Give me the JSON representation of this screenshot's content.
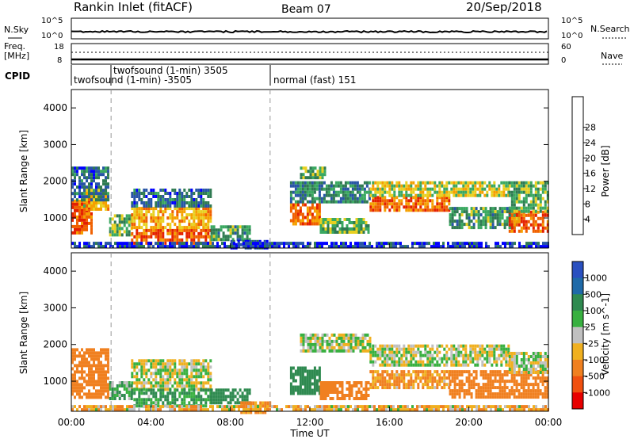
{
  "header": {
    "title": "Rankin Inlet (fitACF)",
    "beam": "Beam 07",
    "date": "20/Sep/2018"
  },
  "noise_panel": {
    "left_label": "N.Sky",
    "right_label": "N.Search",
    "tick_top": "10^5",
    "tick_bottom": "10^0",
    "tick_top_right": "10^5",
    "tick_bottom_right": "10^0"
  },
  "freq_panel": {
    "left_label_1": "Freq.",
    "left_label_2": "[MHz]",
    "right_label": "Nave",
    "tick_top": "18",
    "tick_bottom": "8",
    "tick_top_right": "60",
    "tick_bottom_right": "0"
  },
  "cpid": {
    "label": "CPID",
    "entries": [
      {
        "text": "twofsound (1-min) 3505"
      },
      {
        "text": "twofsound (1-min) -3505"
      },
      {
        "text": "normal (fast) 151"
      }
    ]
  },
  "x_axis": {
    "label": "Time UT",
    "ticks": [
      "00:00",
      "04:00",
      "08:00",
      "12:00",
      "16:00",
      "20:00",
      "00:00"
    ]
  },
  "y_axis": {
    "label": "Slant Range [km]",
    "ticks": [
      "1000",
      "2000",
      "3000",
      "4000"
    ]
  },
  "power_scale": {
    "title": "Power [dB]",
    "labels": [
      "4",
      "8",
      "12",
      "16",
      "20",
      "24",
      "28"
    ],
    "colors": [
      "#0000ff",
      "#2855a6",
      "#2f7a52",
      "#3aa860",
      "#e8d020",
      "#f5a000",
      "#f06000",
      "#e42000",
      "#ff0000"
    ]
  },
  "velocity_scale": {
    "title": "Velocity [m s^-1]",
    "labels": [
      "1000",
      "500",
      "100",
      "25",
      "-25",
      "-100",
      "-500",
      "-1000"
    ],
    "colors": [
      "#2a50c0",
      "#1f6aa8",
      "#2f8a50",
      "#38b040",
      "#c0c0c0",
      "#f0b020",
      "#f08020",
      "#f05010",
      "#e80000"
    ]
  },
  "chart_data": {
    "type": "heatmap",
    "x_range_hours": [
      0,
      24
    ],
    "y_range_km": [
      180,
      4500
    ],
    "mode_change_hours": [
      2,
      10
    ],
    "power_regions": [
      {
        "t0": 0.0,
        "t1": 1.0,
        "r0": 600,
        "r1": 1500,
        "db": 27
      },
      {
        "t0": 0.6,
        "t1": 1.9,
        "r0": 1200,
        "r1": 1800,
        "db": 20
      },
      {
        "t0": 0.0,
        "t1": 1.9,
        "r0": 1500,
        "r1": 2400,
        "db": 8
      },
      {
        "t0": 1.9,
        "t1": 3.0,
        "r0": 500,
        "r1": 1100,
        "db": 14
      },
      {
        "t0": 3.0,
        "t1": 7.0,
        "r0": 300,
        "r1": 700,
        "db": 27
      },
      {
        "t0": 3.0,
        "t1": 7.0,
        "r0": 700,
        "r1": 1300,
        "db": 21
      },
      {
        "t0": 3.0,
        "t1": 7.0,
        "r0": 1300,
        "r1": 1800,
        "db": 8
      },
      {
        "t0": 7.0,
        "t1": 9.0,
        "r0": 400,
        "r1": 800,
        "db": 12
      },
      {
        "t0": 8.0,
        "t1": 10.0,
        "r0": 200,
        "r1": 400,
        "db": 6
      },
      {
        "t0": 11.0,
        "t1": 12.5,
        "r0": 800,
        "r1": 1400,
        "db": 25
      },
      {
        "t0": 11.5,
        "t1": 12.8,
        "r0": 2100,
        "r1": 2400,
        "db": 14
      },
      {
        "t0": 11.0,
        "t1": 15.0,
        "r0": 1400,
        "r1": 2000,
        "db": 10
      },
      {
        "t0": 12.5,
        "t1": 15.0,
        "r0": 600,
        "r1": 1000,
        "db": 15
      },
      {
        "t0": 15.0,
        "t1": 19.0,
        "r0": 1200,
        "r1": 1600,
        "db": 26
      },
      {
        "t0": 15.0,
        "t1": 22.0,
        "r0": 1600,
        "r1": 2000,
        "db": 18
      },
      {
        "t0": 19.0,
        "t1": 22.5,
        "r0": 700,
        "r1": 1300,
        "db": 12
      },
      {
        "t0": 22.0,
        "t1": 24.0,
        "r0": 600,
        "r1": 1200,
        "db": 26
      },
      {
        "t0": 22.0,
        "t1": 24.0,
        "r0": 1200,
        "r1": 2000,
        "db": 14
      },
      {
        "t0": 0.0,
        "t1": 24.0,
        "r0": 180,
        "r1": 350,
        "db": 5
      }
    ],
    "velocity_regions": [
      {
        "t0": 0.0,
        "t1": 1.9,
        "r0": 600,
        "r1": 1900,
        "v": -300
      },
      {
        "t0": 1.9,
        "t1": 3.0,
        "r0": 500,
        "r1": 1000,
        "v": 80
      },
      {
        "t0": 3.0,
        "t1": 7.0,
        "r0": 800,
        "r1": 1600,
        "v": 0
      },
      {
        "t0": 3.0,
        "t1": 7.0,
        "r0": 300,
        "r1": 800,
        "v": 120
      },
      {
        "t0": 7.0,
        "t1": 9.0,
        "r0": 400,
        "r1": 800,
        "v": 200
      },
      {
        "t0": 8.5,
        "t1": 10.0,
        "r0": 180,
        "r1": 450,
        "v": -150
      },
      {
        "t0": 11.0,
        "t1": 12.5,
        "r0": 700,
        "r1": 1400,
        "v": 300
      },
      {
        "t0": 11.5,
        "t1": 15.0,
        "r0": 1800,
        "r1": 2300,
        "v": 0
      },
      {
        "t0": 12.5,
        "t1": 15.0,
        "r0": 500,
        "r1": 1000,
        "v": -400
      },
      {
        "t0": 15.0,
        "t1": 22.0,
        "r0": 1400,
        "r1": 2000,
        "v": 0
      },
      {
        "t0": 15.0,
        "t1": 19.0,
        "r0": 800,
        "r1": 1300,
        "v": -120
      },
      {
        "t0": 19.0,
        "t1": 24.0,
        "r0": 600,
        "r1": 1300,
        "v": -250
      },
      {
        "t0": 22.0,
        "t1": 24.0,
        "r0": 1200,
        "r1": 1800,
        "v": 0
      },
      {
        "t0": 0.0,
        "t1": 24.0,
        "r0": 180,
        "r1": 350,
        "v": -60
      }
    ]
  }
}
